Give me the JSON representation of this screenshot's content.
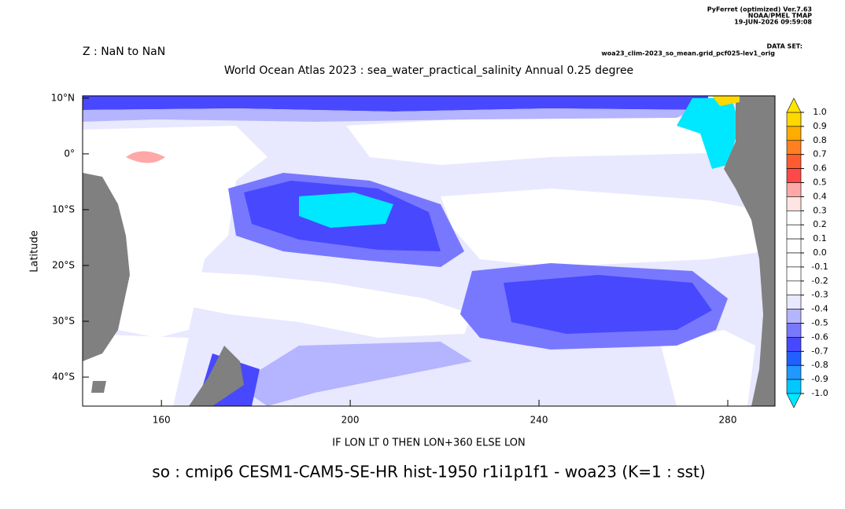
{
  "header": {
    "program": "PyFerret (optimized) Ver.7.63",
    "lab": "NOAA/PMEL TMAP",
    "date": "19-JUN-2026 09:59:08",
    "dataset_label": "DATA SET:",
    "dataset": "woa23_clim-2023_so_mean.grid_pcf025-lev1_orig",
    "z_range": "Z : NaN to NaN",
    "title": "World Ocean Atlas 2023 : sea_water_practical_salinity Annual  0.25 degree"
  },
  "chart_data": {
    "type": "map",
    "x_label": "IF LON LT 0 THEN LON+360 ELSE LON",
    "y_label": "Latitude",
    "caption": "so : cmip6 CESM1-CAM5-SE-HR hist-1950 r1i1p1f1 - woa23  (K=1 : sst)",
    "xlim": [
      143.3,
      290
    ],
    "ylim": [
      -45.2,
      10.4
    ],
    "xticks": [
      160,
      200,
      240,
      280
    ],
    "yticks": [
      {
        "value": 10,
        "label": "10°N"
      },
      {
        "value": 0,
        "label": "0°"
      },
      {
        "value": -10,
        "label": "10°S"
      },
      {
        "value": -20,
        "label": "20°S"
      },
      {
        "value": -30,
        "label": "30°S"
      },
      {
        "value": -40,
        "label": "40°S"
      }
    ],
    "levels": [
      {
        "value": 1,
        "label": "1.0"
      },
      0.9,
      0.8,
      0.7,
      0.6,
      0.5,
      0.4,
      0.3,
      0.2,
      0.1,
      {
        "value": 0,
        "label": "0.0"
      },
      -0.1,
      -0.2,
      -0.3,
      -0.4,
      -0.5,
      -0.6,
      -0.7,
      -0.8,
      -0.9,
      {
        "value": -1,
        "label": "-1.0"
      }
    ],
    "colors": [
      "#ffd800",
      "#ffac00",
      "#ff8020",
      "#ff5a30",
      "#ff4848",
      "#ffa8a8",
      "#ffe4e4",
      "#ffffff",
      "#ffffff",
      "#ffffff",
      "#ffffff",
      "#ffffff",
      "#ffffff",
      "#e8e8ff",
      "#b4b4ff",
      "#7878ff",
      "#4848ff",
      "#2060ff",
      "#2098ff",
      "#00c8ff"
    ],
    "over_color": "#ffe400",
    "under_color": "#00e8ff"
  }
}
